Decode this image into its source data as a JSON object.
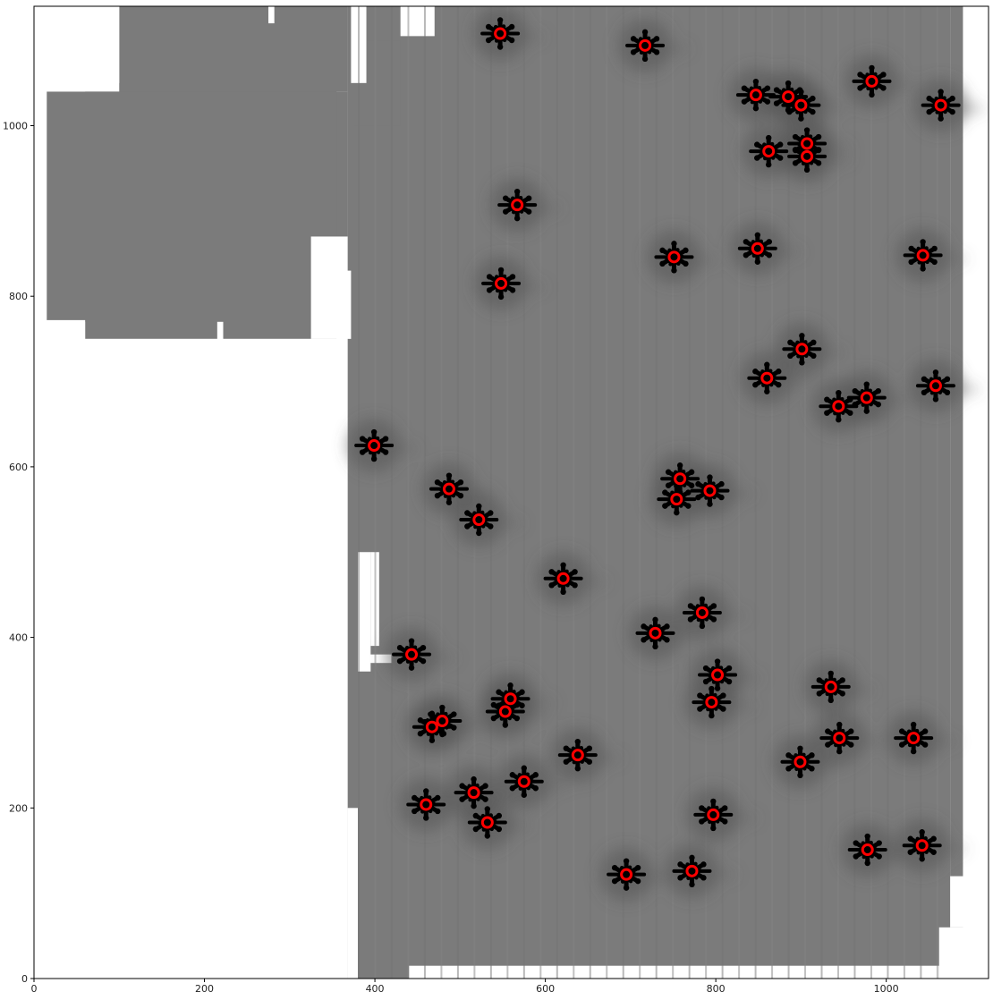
{
  "chart_data": {
    "type": "scatter",
    "xlim": [
      0,
      1120
    ],
    "ylim": [
      0,
      1140
    ],
    "x_ticks": [
      0,
      200,
      400,
      600,
      800,
      1000
    ],
    "y_ticks": [
      0,
      200,
      400,
      600,
      800,
      1000
    ],
    "x_tick_labels": [
      "0",
      "200",
      "400",
      "600",
      "800",
      "1000"
    ],
    "y_tick_labels": [
      "0",
      "200",
      "400",
      "600",
      "800",
      "1000"
    ],
    "grid": false,
    "background": "grayscale astronomical mosaic with star diffraction patterns",
    "marker": "open circle",
    "marker_color": "#ff0000",
    "star_color": "#000000",
    "image_gray": "#7b7b7b",
    "points": [
      {
        "x": 547,
        "y": 1108
      },
      {
        "x": 717,
        "y": 1094
      },
      {
        "x": 983,
        "y": 1052
      },
      {
        "x": 847,
        "y": 1036
      },
      {
        "x": 885,
        "y": 1034
      },
      {
        "x": 900,
        "y": 1024
      },
      {
        "x": 1064,
        "y": 1024
      },
      {
        "x": 862,
        "y": 970
      },
      {
        "x": 907,
        "y": 979
      },
      {
        "x": 907,
        "y": 964
      },
      {
        "x": 567,
        "y": 907
      },
      {
        "x": 751,
        "y": 846
      },
      {
        "x": 849,
        "y": 856
      },
      {
        "x": 1043,
        "y": 848
      },
      {
        "x": 548,
        "y": 815
      },
      {
        "x": 901,
        "y": 738
      },
      {
        "x": 860,
        "y": 704
      },
      {
        "x": 944,
        "y": 671
      },
      {
        "x": 977,
        "y": 681
      },
      {
        "x": 1058,
        "y": 695
      },
      {
        "x": 399,
        "y": 625
      },
      {
        "x": 487,
        "y": 574
      },
      {
        "x": 758,
        "y": 586
      },
      {
        "x": 793,
        "y": 572
      },
      {
        "x": 754,
        "y": 562
      },
      {
        "x": 522,
        "y": 538
      },
      {
        "x": 621,
        "y": 469
      },
      {
        "x": 784,
        "y": 429
      },
      {
        "x": 729,
        "y": 405
      },
      {
        "x": 443,
        "y": 380
      },
      {
        "x": 802,
        "y": 356
      },
      {
        "x": 935,
        "y": 342
      },
      {
        "x": 559,
        "y": 328
      },
      {
        "x": 795,
        "y": 324
      },
      {
        "x": 553,
        "y": 313
      },
      {
        "x": 479,
        "y": 302
      },
      {
        "x": 467,
        "y": 295
      },
      {
        "x": 945,
        "y": 282
      },
      {
        "x": 1032,
        "y": 282
      },
      {
        "x": 638,
        "y": 262
      },
      {
        "x": 899,
        "y": 254
      },
      {
        "x": 575,
        "y": 231
      },
      {
        "x": 516,
        "y": 218
      },
      {
        "x": 460,
        "y": 204
      },
      {
        "x": 797,
        "y": 192
      },
      {
        "x": 532,
        "y": 183
      },
      {
        "x": 978,
        "y": 151
      },
      {
        "x": 1042,
        "y": 156
      },
      {
        "x": 695,
        "y": 122
      },
      {
        "x": 772,
        "y": 126
      }
    ]
  }
}
